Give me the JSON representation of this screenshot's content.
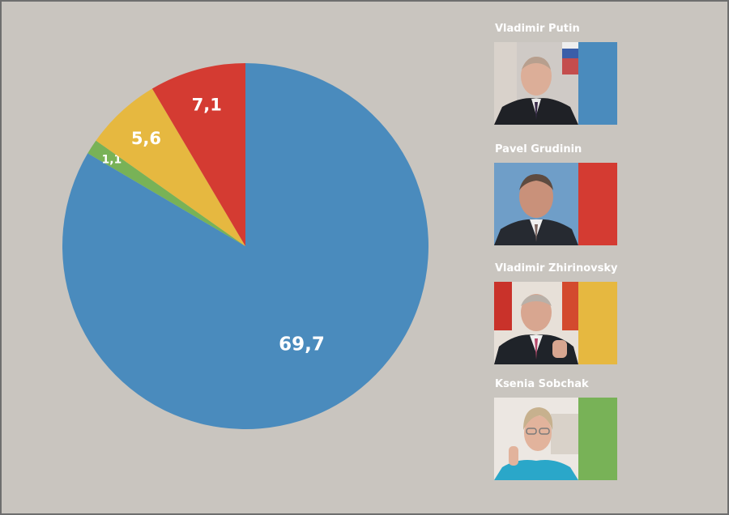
{
  "chart_data": {
    "type": "pie",
    "start_angle": "12 o'clock, clockwise",
    "slices": [
      {
        "value_label": "69,7",
        "value": 69.7,
        "color": "#4a8bbd",
        "candidate": "Vladimir Putin"
      },
      {
        "value_label": "1,1",
        "value": 1.1,
        "color": "#78b257",
        "candidate": "Ksenia Sobchak"
      },
      {
        "value_label": "5,6",
        "value": 5.6,
        "color": "#e6b840",
        "candidate": "Vladimir Zhirinovsky"
      },
      {
        "value_label": "7,1",
        "value": 7.1,
        "color": "#d43b32",
        "candidate": "Pavel Grudinin"
      }
    ],
    "legend_position": "right"
  },
  "legend": [
    {
      "name": "Vladimir Putin",
      "color": "#4a8bbd",
      "photo": "portrait-photo"
    },
    {
      "name": "Pavel Grudinin",
      "color": "#d43b32",
      "photo": "portrait-photo"
    },
    {
      "name": "Vladimir Zhirinovsky",
      "color": "#e6b840",
      "photo": "portrait-photo"
    },
    {
      "name": "Ksenia Sobchak",
      "color": "#78b257",
      "photo": "portrait-photo"
    }
  ]
}
